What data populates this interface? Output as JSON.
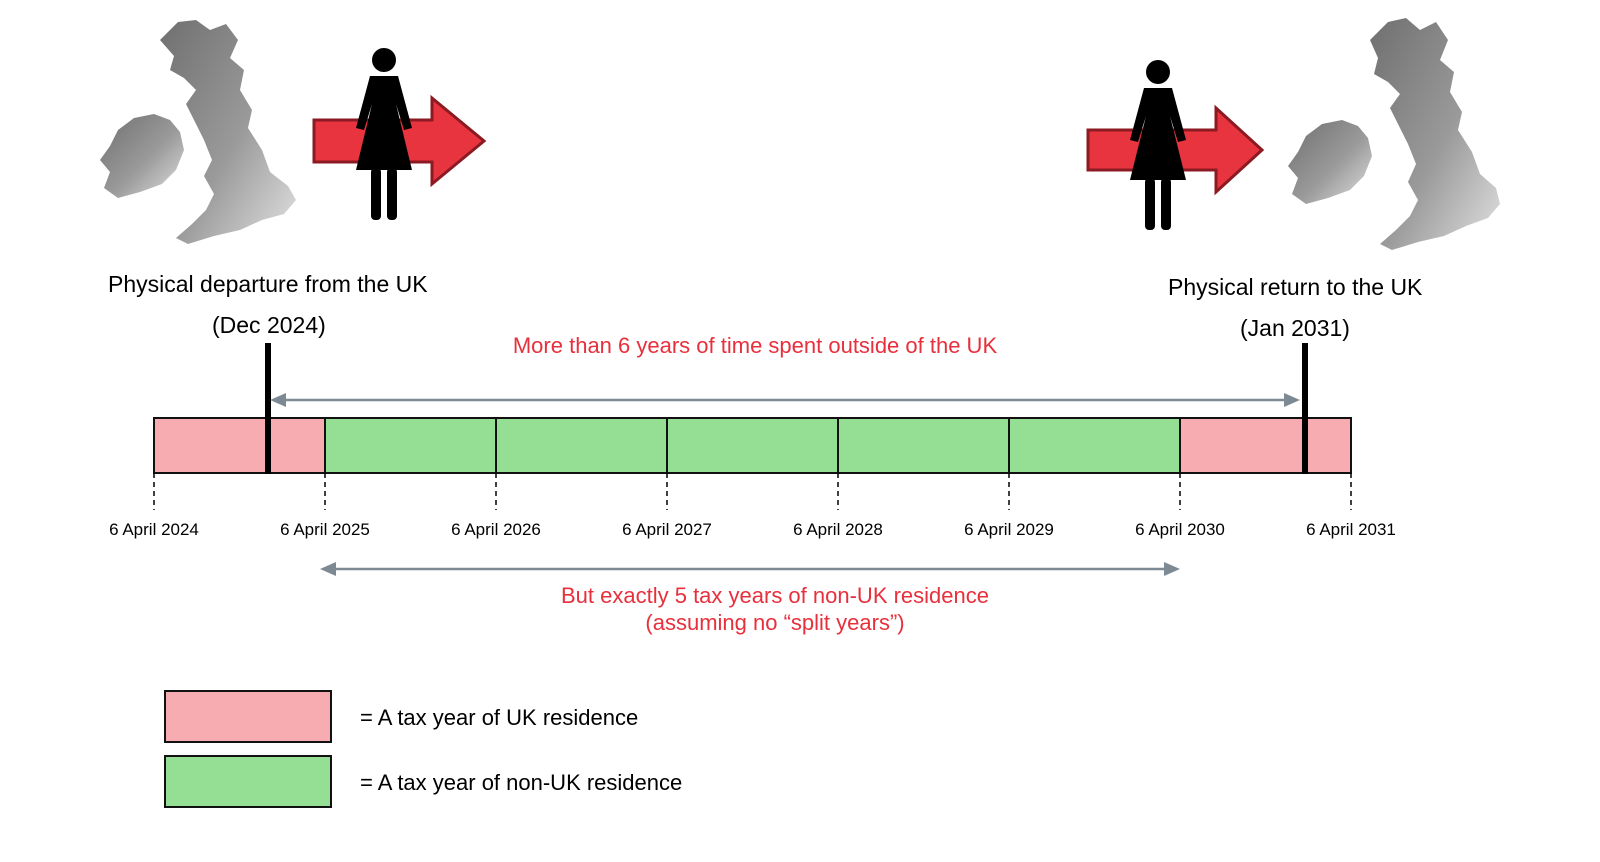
{
  "departure": {
    "caption": "Physical departure from the UK",
    "date": "(Dec 2024)"
  },
  "return": {
    "caption": "Physical return to the UK",
    "date": "(Jan 2031)"
  },
  "top_note": "More than 6 years of time spent outside of the UK",
  "bottom_note": {
    "line1": "But exactly 5 tax years of non-UK residence",
    "line2": "(assuming no “split years”)"
  },
  "timeline": {
    "ticks": [
      "6 April 2024",
      "6 April 2025",
      "6 April 2026",
      "6 April 2027",
      "6 April 2028",
      "6 April 2029",
      "6 April 2030",
      "6 April 2031"
    ],
    "years": [
      {
        "status": "uk"
      },
      {
        "status": "non-uk"
      },
      {
        "status": "non-uk"
      },
      {
        "status": "non-uk"
      },
      {
        "status": "non-uk"
      },
      {
        "status": "non-uk"
      },
      {
        "status": "uk"
      }
    ]
  },
  "legend": {
    "uk_label": "= A tax year of UK residence",
    "non_uk_label": "= A tax year of non-UK residence"
  },
  "colors": {
    "uk": "#f7acb1",
    "non_uk": "#95df95",
    "arrow_red": "#e8343f",
    "note_red": "#e8303c",
    "span_arrow": "#7d8a94"
  },
  "icons": [
    "uk-map-icon",
    "person-icon",
    "right-arrow-icon"
  ]
}
